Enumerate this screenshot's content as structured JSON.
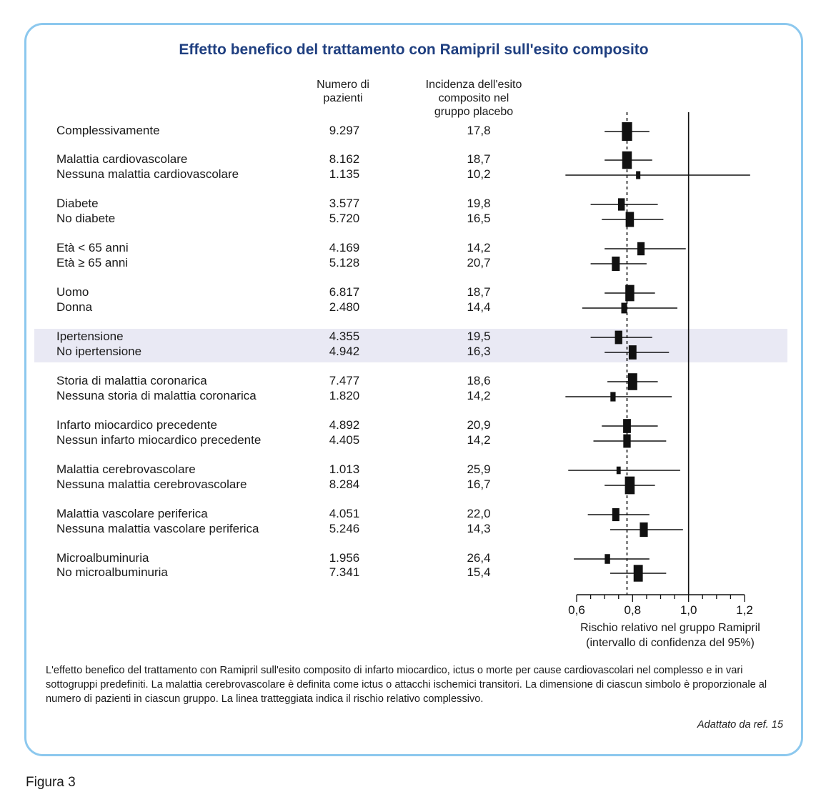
{
  "title": "Effetto benefico del trattamento con Ramipril sull'esito composito",
  "headers": {
    "patients": [
      "Numero di",
      "pazienti"
    ],
    "incidence": [
      "Incidenza dell'esito",
      "composito nel",
      "gruppo placebo"
    ]
  },
  "chart_data": {
    "type": "forest",
    "xlabel": [
      "Rischio relativo nel gruppo Ramipril",
      "(intervallo di confidenza del 95%)"
    ],
    "xlim": [
      0.6,
      1.2
    ],
    "xticks": [
      0.6,
      0.8,
      1.0,
      1.2
    ],
    "xtick_labels": [
      "0,6",
      "0,8",
      "1,0",
      "1,2"
    ],
    "reference_line": 1.0,
    "overall_dashed_line": 0.78,
    "highlight_group": [
      "Ipertensione",
      "No ipertensione"
    ],
    "rows": [
      {
        "label": "Complessivamente",
        "n": "9.297",
        "incidence": "17,8",
        "rr": 0.78,
        "lo": 0.7,
        "hi": 0.86
      },
      {
        "label": "Malattia cardiovascolare",
        "n": "8.162",
        "incidence": "18,7",
        "rr": 0.78,
        "lo": 0.7,
        "hi": 0.87
      },
      {
        "label": "Nessuna malattia cardiovascolare",
        "n": "1.135",
        "incidence": "10,2",
        "rr": 0.82,
        "lo": 0.56,
        "hi": 1.22
      },
      {
        "label": "Diabete",
        "n": "3.577",
        "incidence": "19,8",
        "rr": 0.76,
        "lo": 0.65,
        "hi": 0.89
      },
      {
        "label": "No diabete",
        "n": "5.720",
        "incidence": "16,5",
        "rr": 0.79,
        "lo": 0.69,
        "hi": 0.91
      },
      {
        "label": "Età < 65 anni",
        "n": "4.169",
        "incidence": "14,2",
        "rr": 0.83,
        "lo": 0.7,
        "hi": 0.99
      },
      {
        "label": "Età ≥ 65 anni",
        "n": "5.128",
        "incidence": "20,7",
        "rr": 0.74,
        "lo": 0.65,
        "hi": 0.85
      },
      {
        "label": "Uomo",
        "n": "6.817",
        "incidence": "18,7",
        "rr": 0.79,
        "lo": 0.7,
        "hi": 0.88
      },
      {
        "label": "Donna",
        "n": "2.480",
        "incidence": "14,4",
        "rr": 0.77,
        "lo": 0.62,
        "hi": 0.96
      },
      {
        "label": "Ipertensione",
        "n": "4.355",
        "incidence": "19,5",
        "rr": 0.75,
        "lo": 0.65,
        "hi": 0.87
      },
      {
        "label": "No ipertensione",
        "n": "4.942",
        "incidence": "16,3",
        "rr": 0.8,
        "lo": 0.7,
        "hi": 0.93
      },
      {
        "label": "Storia di malattia coronarica",
        "n": "7.477",
        "incidence": "18,6",
        "rr": 0.8,
        "lo": 0.71,
        "hi": 0.89
      },
      {
        "label": "Nessuna storia di malattia coronarica",
        "n": "1.820",
        "incidence": "14,2",
        "rr": 0.73,
        "lo": 0.56,
        "hi": 0.94
      },
      {
        "label": "Infarto miocardico precedente",
        "n": "4.892",
        "incidence": "20,9",
        "rr": 0.78,
        "lo": 0.69,
        "hi": 0.89
      },
      {
        "label": "Nessun infarto miocardico precedente",
        "n": "4.405",
        "incidence": "14,2",
        "rr": 0.78,
        "lo": 0.66,
        "hi": 0.92
      },
      {
        "label": "Malattia cerebrovascolare",
        "n": "1.013",
        "incidence": "25,9",
        "rr": 0.75,
        "lo": 0.57,
        "hi": 0.97
      },
      {
        "label": "Nessuna malattia cerebrovascolare",
        "n": "8.284",
        "incidence": "16,7",
        "rr": 0.79,
        "lo": 0.7,
        "hi": 0.88
      },
      {
        "label": "Malattia vascolare periferica",
        "n": "4.051",
        "incidence": "22,0",
        "rr": 0.74,
        "lo": 0.64,
        "hi": 0.86
      },
      {
        "label": "Nessuna malattia vascolare periferica",
        "n": "5.246",
        "incidence": "14,3",
        "rr": 0.84,
        "lo": 0.72,
        "hi": 0.98
      },
      {
        "label": "Microalbuminuria",
        "n": "1.956",
        "incidence": "26,4",
        "rr": 0.71,
        "lo": 0.59,
        "hi": 0.86
      },
      {
        "label": "No microalbuminuria",
        "n": "7.341",
        "incidence": "15,4",
        "rr": 0.82,
        "lo": 0.72,
        "hi": 0.92
      }
    ]
  },
  "caption": "L'effetto benefico del trattamento con Ramipril sull'esito composito di infarto miocardico, ictus o morte per cause cardiovascolari nel complesso e in vari sottogruppi predefiniti. La malattia cerebrovascolare è definita come ictus o attacchi ischemici transitori. La dimensione di ciascun simbolo è proporzionale al numero di pazienti in ciascun gruppo. La linea tratteggiata indica il rischio relativo complessivo.",
  "source": "Adattato da ref. 15",
  "figure_label": "Figura 3"
}
